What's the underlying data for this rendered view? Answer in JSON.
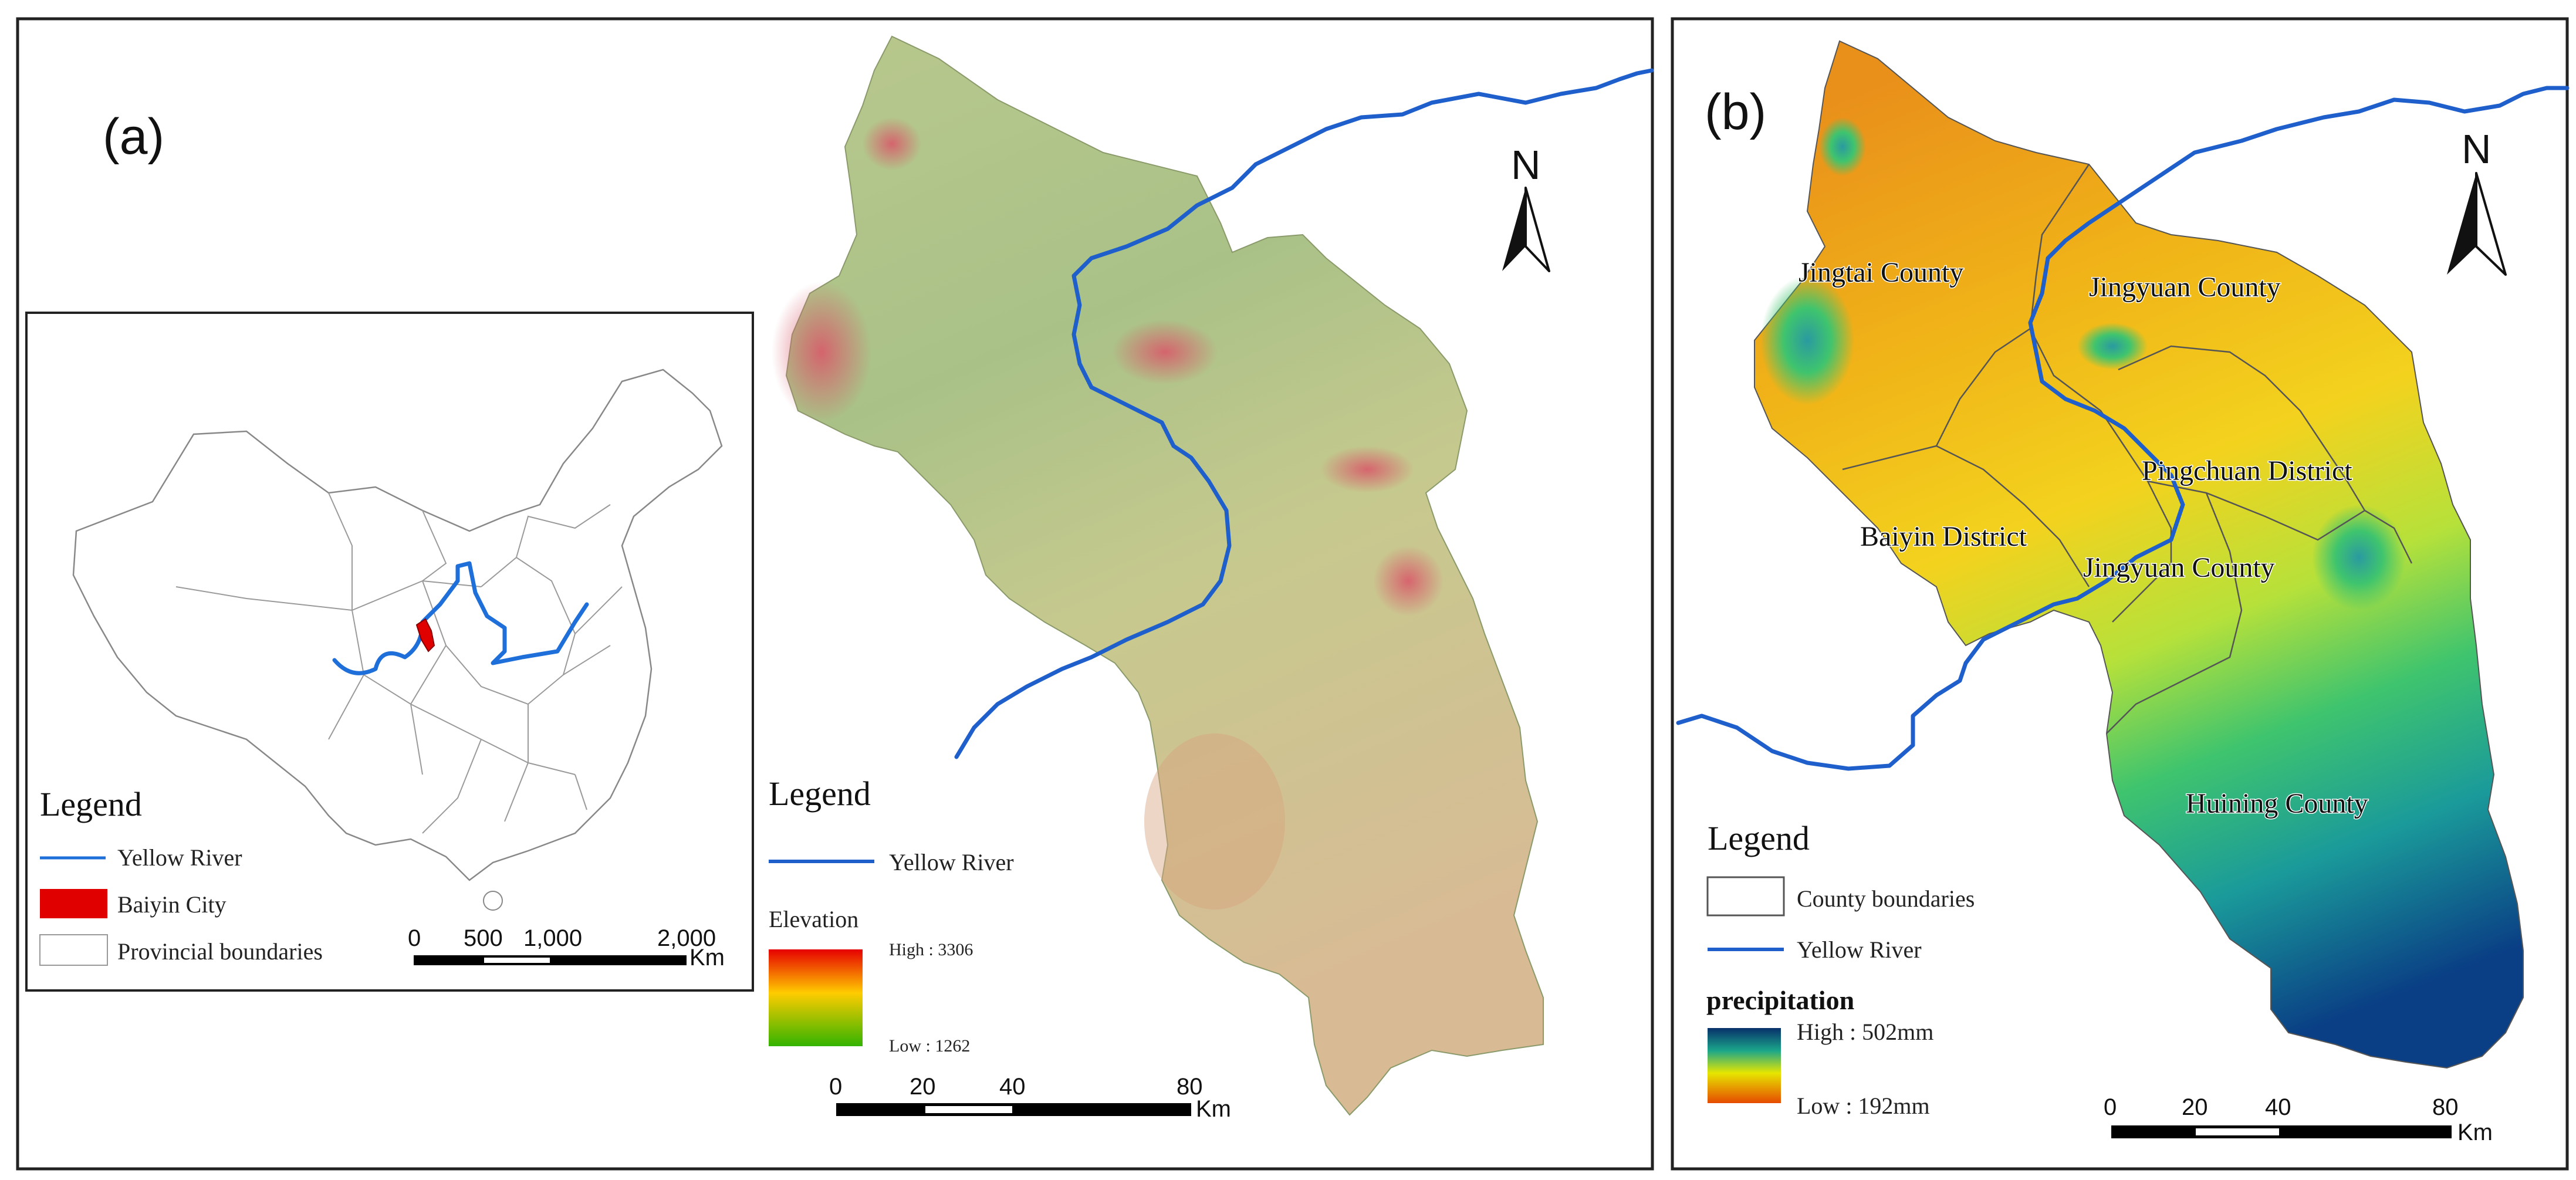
{
  "panel_a": {
    "label": "(a)",
    "inset": {
      "legend_title": "Legend",
      "items": [
        "Yellow River",
        "Baiyin City",
        "Provincial boundaries"
      ],
      "colors": {
        "river": "#1e6fd9",
        "baiyin": "#e00000"
      },
      "scale": {
        "ticks": [
          "0",
          "500",
          "1,000",
          "2,000"
        ],
        "unit": "Km"
      }
    },
    "north": "N",
    "legend": {
      "title": "Legend",
      "river_label": "Yellow River",
      "elevation_title": "Elevation",
      "high": "High : 3306",
      "low": "Low : 1262"
    },
    "scale": {
      "ticks": [
        "0",
        "20",
        "40",
        "80"
      ],
      "unit": "Km"
    }
  },
  "panel_b": {
    "label": "(b)",
    "north": "N",
    "counties": [
      "Jingtai County",
      "Jingyuan County",
      "Pingchuan District",
      "Baiyin District",
      "Jingyuan County",
      "Huining County"
    ],
    "legend": {
      "title": "Legend",
      "county_label": "County boundaries",
      "river_label": "Yellow River",
      "precip_title": "precipitation",
      "high": "High : 502mm",
      "low": "Low : 192mm"
    },
    "scale": {
      "ticks": [
        "0",
        "20",
        "40",
        "80"
      ],
      "unit": "Km"
    }
  }
}
